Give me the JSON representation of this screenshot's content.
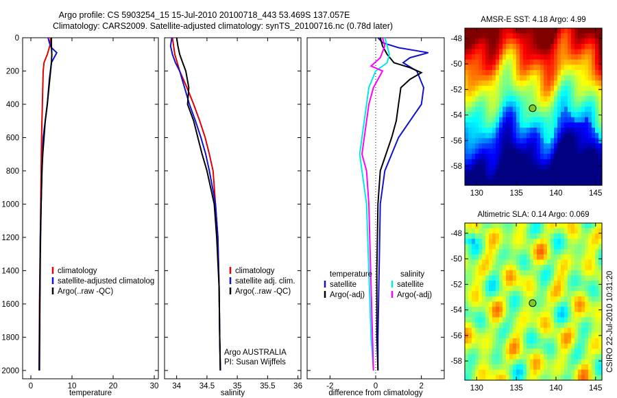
{
  "header": {
    "line1": "Argo profile: CS 5903254_15 15-Jul-2010 20100718_443 53.469S 137.057E",
    "line2": "Climatology: CARS2009. Satellite-adjusted climatology: synTS_20100716.nc (0.78d later)"
  },
  "footer_stamp": "CSIRO 22-Jul-2010 10:31:20",
  "colors": {
    "climatology": "#e00000",
    "satellite": "#1010d0",
    "argo": "#000000",
    "satellite_salinity": "#00e8e8",
    "argo_salinity": "#ff00ff"
  },
  "chart_data": [
    {
      "id": "temperature",
      "type": "line",
      "xlabel": "temperature",
      "ylabel": "",
      "xlim": [
        -2,
        31
      ],
      "ylim": [
        2050,
        0
      ],
      "xticks": [
        0,
        10,
        20,
        30
      ],
      "yticks": [
        0,
        200,
        400,
        600,
        800,
        1000,
        1200,
        1400,
        1600,
        1800,
        2000
      ],
      "legend": {
        "placement": "lower-right",
        "entries": [
          "climatology",
          "satellite-adjusted climatolog",
          "Argo(..raw -QC)"
        ]
      },
      "series": [
        {
          "name": "climatology",
          "color_key": "climatology",
          "x": [
            4.8,
            4.6,
            4.0,
            3.2,
            3.0,
            2.8,
            2.6,
            2.5,
            2.4,
            2.3,
            2.2,
            2.1,
            2.05,
            2.0
          ],
          "y": [
            0,
            50,
            100,
            150,
            200,
            400,
            600,
            800,
            1000,
            1200,
            1400,
            1600,
            1800,
            2000
          ]
        },
        {
          "name": "satellite-adjusted climatolog",
          "color_key": "satellite",
          "x": [
            4.2,
            4.5,
            5.0,
            6.3,
            5.0,
            4.5,
            4.0,
            3.5,
            3.0,
            2.7,
            2.5,
            2.3,
            2.2,
            2.1,
            2.0
          ],
          "y": [
            0,
            30,
            60,
            90,
            150,
            250,
            400,
            500,
            600,
            800,
            1000,
            1200,
            1500,
            1800,
            2000
          ]
        },
        {
          "name": "Argo(..raw -QC)",
          "color_key": "argo",
          "x": [
            5.0,
            5.0,
            5.1,
            5.0,
            4.8,
            4.4,
            4.0,
            3.5,
            3.2,
            2.9,
            2.7,
            2.5,
            2.3,
            2.2,
            2.1
          ],
          "y": [
            0,
            50,
            100,
            150,
            200,
            300,
            400,
            500,
            600,
            700,
            800,
            1000,
            1300,
            1600,
            2000
          ]
        }
      ]
    },
    {
      "id": "salinity",
      "type": "line",
      "xlabel": "salinity",
      "ylabel": "",
      "xlim": [
        33.8,
        36.05
      ],
      "ylim": [
        2050,
        0
      ],
      "xticks": [
        34,
        34.5,
        35,
        35.5,
        36
      ],
      "xticklabels": [
        "34",
        "34.5",
        "35",
        "35.5",
        "36"
      ],
      "legend": {
        "placement": "lower-right",
        "entries": [
          "climatology",
          "satellite adj. clim.",
          "Argo(..raw -QC)"
        ]
      },
      "annotation": [
        "Argo AUSTRALIA",
        "PI: Susan Wijffels"
      ],
      "series": [
        {
          "name": "climatology",
          "color_key": "climatology",
          "x": [
            33.93,
            33.97,
            34.05,
            34.17,
            34.28,
            34.38,
            34.47,
            34.54,
            34.6,
            34.64,
            34.68,
            34.7,
            34.71,
            34.72
          ],
          "y": [
            0,
            100,
            200,
            300,
            400,
            500,
            600,
            700,
            800,
            1000,
            1200,
            1500,
            1800,
            2000
          ]
        },
        {
          "name": "satellite adj. clim.",
          "color_key": "satellite",
          "x": [
            33.92,
            33.9,
            33.93,
            33.98,
            34.05,
            34.13,
            34.21,
            34.31,
            34.4,
            34.48,
            34.54,
            34.59,
            34.64,
            34.68,
            34.7,
            34.71,
            34.72
          ],
          "y": [
            0,
            50,
            100,
            150,
            200,
            300,
            400,
            500,
            600,
            700,
            800,
            900,
            1000,
            1200,
            1500,
            1800,
            2000
          ]
        },
        {
          "name": "Argo(..raw -QC)",
          "color_key": "argo",
          "x": [
            34.0,
            34.02,
            34.05,
            34.1,
            34.15,
            34.2,
            34.18,
            34.28,
            34.35,
            34.42,
            34.5,
            34.56,
            34.62,
            34.66,
            34.7,
            34.71,
            34.72
          ],
          "y": [
            0,
            50,
            100,
            150,
            200,
            300,
            400,
            500,
            600,
            700,
            800,
            900,
            1000,
            1200,
            1500,
            1800,
            2000
          ]
        }
      ]
    },
    {
      "id": "difference",
      "type": "line",
      "xlabel": "difference from climatology",
      "ylabel": "",
      "xlim": [
        -3,
        3
      ],
      "ylim": [
        2050,
        0
      ],
      "xticks": [
        -2,
        0,
        2
      ],
      "legend": {
        "placement": "lower-right",
        "groups": [
          {
            "heading": "temperature",
            "entries": [
              "satellite",
              "Argo(-adj)"
            ]
          },
          {
            "heading": "salinity",
            "entries": [
              "satellite",
              "Argo(-adj)"
            ]
          }
        ]
      },
      "series": [
        {
          "name": "temperature satellite",
          "color_key": "satellite",
          "x": [
            0.1,
            0.3,
            1.0,
            2.3,
            1.5,
            1.2,
            1.8,
            2.1,
            2.0,
            1.5,
            1.0,
            0.4,
            0.2,
            0.15,
            0.1,
            0.1
          ],
          "y": [
            0,
            30,
            60,
            90,
            120,
            150,
            200,
            300,
            400,
            500,
            600,
            800,
            1000,
            1400,
            1800,
            2000
          ]
        },
        {
          "name": "temperature Argo(-adj)",
          "color_key": "argo",
          "x": [
            0.2,
            0.3,
            0.5,
            0.8,
            1.5,
            2.0,
            1.5,
            1.1,
            1.0,
            0.9,
            0.7,
            0.2,
            0.1,
            0.05,
            0.05,
            0.1
          ],
          "y": [
            0,
            50,
            100,
            150,
            180,
            210,
            250,
            300,
            400,
            500,
            600,
            800,
            1000,
            1400,
            1800,
            2000
          ]
        },
        {
          "name": "salinity satellite",
          "color_key": "satellite_salinity",
          "x": [
            0.4,
            0.5,
            0.6,
            0.5,
            0.0,
            -0.3,
            -0.4,
            -0.5,
            -0.6,
            -0.7,
            -0.6,
            -0.4,
            -0.3,
            -0.2,
            -0.1
          ],
          "y": [
            0,
            50,
            100,
            150,
            200,
            300,
            400,
            500,
            600,
            700,
            800,
            1000,
            1400,
            1800,
            2000
          ]
        },
        {
          "name": "salinity Argo(-adj)",
          "color_key": "argo_salinity",
          "x": [
            0.3,
            0.4,
            0.2,
            -0.2,
            0.3,
            -0.1,
            -0.3,
            -0.4,
            -0.5,
            -0.6,
            -0.4,
            -0.3,
            -0.2,
            -0.1
          ],
          "y": [
            0,
            50,
            120,
            170,
            200,
            300,
            400,
            500,
            600,
            700,
            800,
            1000,
            1500,
            2000
          ]
        }
      ]
    },
    {
      "id": "sst-map",
      "type": "heatmap",
      "title": "AMSR-E SST: 4.18 Argo: 4.99",
      "xlim": [
        128.5,
        145.8
      ],
      "ylim": [
        -59.5,
        -47.2
      ],
      "xticks": [
        130,
        135,
        140,
        145
      ],
      "yticks": [
        -48,
        -50,
        -52,
        -54,
        -56,
        -58
      ],
      "marker": {
        "x": 137.057,
        "y": -53.469
      }
    },
    {
      "id": "sla-map",
      "type": "heatmap",
      "title": "Altimetric SLA: 0.14 Argo: 0.069",
      "xlim": [
        128.5,
        145.8
      ],
      "ylim": [
        -59.5,
        -47.2
      ],
      "xticks": [
        130,
        135,
        140,
        145
      ],
      "yticks": [
        -48,
        -50,
        -52,
        -54,
        -56,
        -58
      ],
      "marker": {
        "x": 137.057,
        "y": -53.469
      }
    }
  ]
}
